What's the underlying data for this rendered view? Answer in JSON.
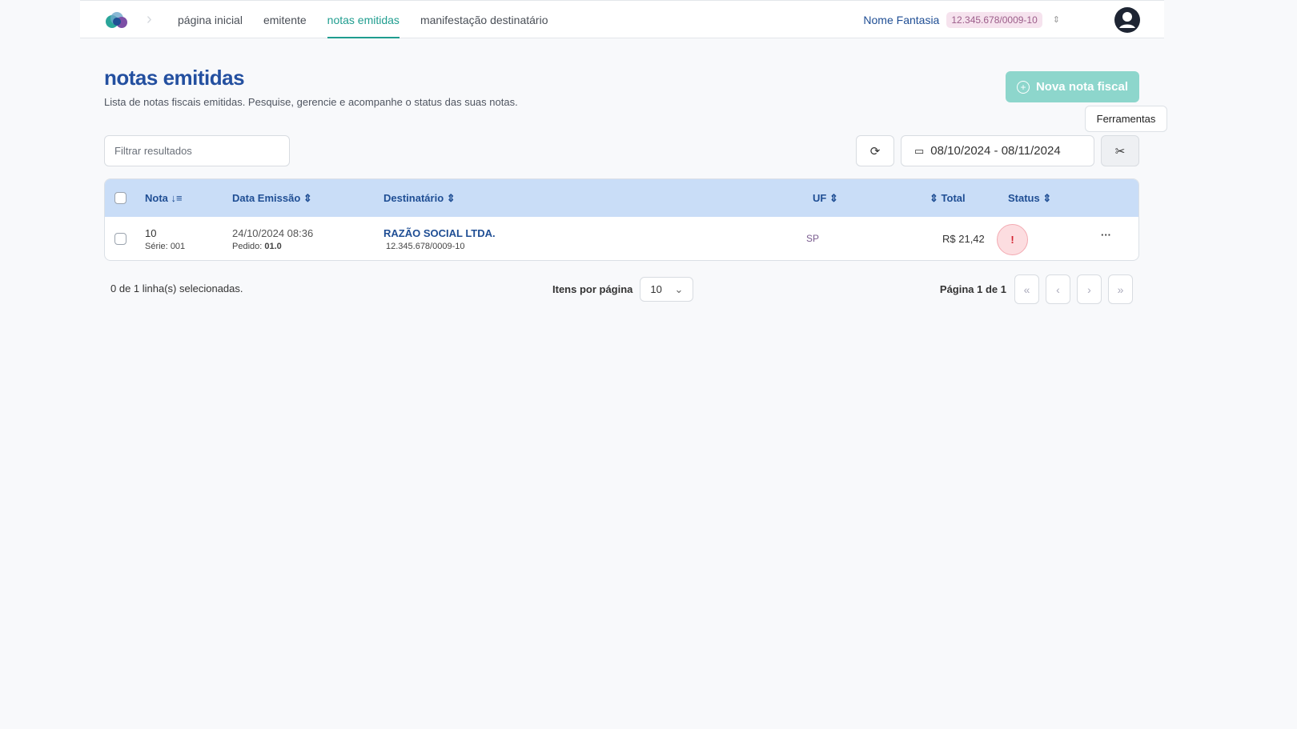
{
  "nav": {
    "items": [
      {
        "label": "página inicial"
      },
      {
        "label": "emitente"
      },
      {
        "label": "notas emitidas"
      },
      {
        "label": "manifestação destinatário"
      }
    ],
    "active": "notas emitidas"
  },
  "org": {
    "name": "Nome Fantasia",
    "cnpj": "12.345.678/0009-10"
  },
  "page": {
    "title": "notas emitidas",
    "subtitle": "Lista de notas fiscais emitidas. Pesquise, gerencie e acompanhe o status das suas notas.",
    "new_button": "Nova nota fiscal",
    "tooltip": "Ferramentas"
  },
  "filter": {
    "placeholder": "Filtrar resultados",
    "value": ""
  },
  "date_range": "08/10/2024 - 08/11/2024",
  "table": {
    "headers": {
      "nota": "Nota",
      "data": "Data Emissão",
      "dest": "Destinatário",
      "uf": "UF",
      "total": "Total",
      "status": "Status"
    },
    "rows": [
      {
        "nota": "10",
        "serie_label": "Série:",
        "serie": "001",
        "data": "24/10/2024 08:36",
        "pedido_label": "Pedido:",
        "pedido": "01.0",
        "dest": "RAZÃO SOCIAL LTDA.",
        "dest_cnpj": "12.345.678/0009-10",
        "uf": "SP",
        "total": "R$ 21,42",
        "status": "error"
      }
    ]
  },
  "footer": {
    "selected": "0 de 1 linha(s) selecionadas.",
    "per_page_label": "Itens por página",
    "per_page": "10",
    "page_info": "Página 1 de 1"
  },
  "colors": {
    "accent": "#1f9d8f",
    "primary": "#2450a0",
    "header_bg": "#c9ddf7",
    "status_error": "#d3212f"
  }
}
